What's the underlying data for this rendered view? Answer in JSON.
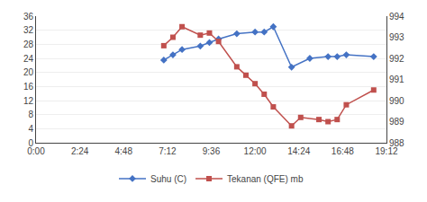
{
  "chart_data": {
    "type": "line",
    "xlim": [
      0,
      19.2
    ],
    "xticks": [
      {
        "value": 0,
        "label": "0:00"
      },
      {
        "value": 2.4,
        "label": "2:24"
      },
      {
        "value": 4.8,
        "label": "4:48"
      },
      {
        "value": 7.2,
        "label": "7:12"
      },
      {
        "value": 9.6,
        "label": "9:36"
      },
      {
        "value": 12.0,
        "label": "12:00"
      },
      {
        "value": 14.4,
        "label": "14:24"
      },
      {
        "value": 16.8,
        "label": "16:48"
      },
      {
        "value": 19.2,
        "label": "19:12"
      }
    ],
    "ylim": [
      0,
      36
    ],
    "yticks": [
      0,
      4,
      8,
      12,
      16,
      20,
      24,
      28,
      32,
      36
    ],
    "y2lim": [
      988,
      994
    ],
    "y2ticks": [
      988,
      989,
      990,
      991,
      992,
      993,
      994
    ],
    "grid": true,
    "legend": "bottom",
    "series": [
      {
        "name": "Suhu (C)",
        "color": "#4472C4",
        "marker": "diamond",
        "x": [
          7.0,
          7.5,
          8.0,
          9.0,
          9.5,
          10.0,
          11.0,
          12.0,
          12.5,
          13.0,
          14.0,
          15.0,
          16.0,
          16.5,
          17.0,
          18.5
        ],
        "values": [
          23.5,
          25.0,
          26.5,
          27.5,
          28.5,
          29.5,
          31.0,
          31.5,
          31.5,
          33.0,
          21.5,
          24.0,
          24.5,
          24.5,
          25.0,
          24.5
        ]
      },
      {
        "name": "Tekanan (QFE) mb",
        "color": "#C0504D",
        "marker": "square",
        "axis": "y2",
        "x": [
          7.0,
          7.5,
          8.0,
          9.0,
          9.5,
          10.0,
          11.0,
          11.5,
          12.0,
          12.5,
          13.0,
          14.0,
          14.5,
          15.5,
          16.0,
          16.5,
          17.0,
          18.5
        ],
        "values": [
          992.6,
          993.0,
          993.5,
          993.1,
          993.2,
          992.8,
          991.6,
          991.2,
          990.8,
          990.3,
          989.7,
          988.8,
          989.2,
          989.1,
          989.0,
          989.1,
          989.8,
          990.5
        ]
      }
    ]
  }
}
